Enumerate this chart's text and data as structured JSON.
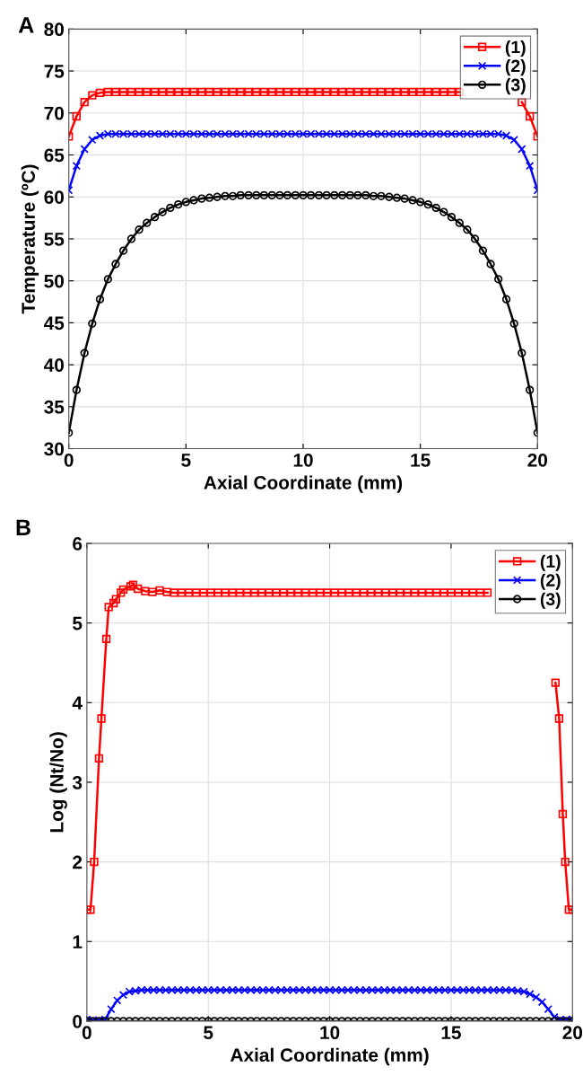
{
  "chart_data": [
    {
      "type": "line",
      "annotations": [
        "A"
      ],
      "xlabel": "Axial Coordinate (mm)",
      "ylabel": "Temperature (ºC)",
      "x": [
        0,
        0.33,
        0.67,
        1,
        1.33,
        1.67,
        2,
        2.33,
        2.67,
        3,
        3.33,
        3.67,
        4,
        4.33,
        4.67,
        5,
        5.33,
        5.67,
        6,
        6.33,
        6.67,
        7,
        7.33,
        7.67,
        8,
        8.33,
        8.67,
        9,
        9.33,
        9.67,
        10,
        10.33,
        10.67,
        11,
        11.33,
        11.67,
        12,
        12.33,
        12.67,
        13,
        13.33,
        13.67,
        14,
        14.33,
        14.67,
        15,
        15.33,
        15.67,
        16,
        16.33,
        16.67,
        17,
        17.33,
        17.67,
        18,
        18.33,
        18.67,
        19,
        19.33,
        19.67,
        20
      ],
      "xlim": [
        0,
        20
      ],
      "xticks": [
        0,
        5,
        10,
        15,
        20
      ],
      "ylim": [
        30,
        80
      ],
      "yticks": [
        30,
        35,
        40,
        45,
        50,
        55,
        60,
        65,
        70,
        75,
        80
      ],
      "grid": true,
      "legend": "top right",
      "line_style": "solid",
      "series": [
        {
          "name": "(1)",
          "color": "#ff0000",
          "marker": "square",
          "values": [
            67.2,
            69.6,
            71.3,
            72.1,
            72.4,
            72.5,
            72.5,
            72.5,
            72.5,
            72.5,
            72.5,
            72.5,
            72.5,
            72.5,
            72.5,
            72.5,
            72.5,
            72.5,
            72.5,
            72.5,
            72.5,
            72.5,
            72.5,
            72.5,
            72.5,
            72.5,
            72.5,
            72.5,
            72.5,
            72.5,
            72.5,
            72.5,
            72.5,
            72.5,
            72.5,
            72.5,
            72.5,
            72.5,
            72.5,
            72.5,
            72.5,
            72.5,
            72.5,
            72.5,
            72.5,
            72.5,
            72.5,
            72.5,
            72.5,
            72.5,
            72.5,
            null,
            null,
            null,
            null,
            null,
            null,
            null,
            71.3,
            69.6,
            67.2
          ]
        },
        {
          "name": "(2)",
          "color": "#0000ff",
          "marker": "cross",
          "values": [
            60.8,
            63.7,
            65.7,
            66.8,
            67.3,
            67.5,
            67.5,
            67.5,
            67.5,
            67.5,
            67.5,
            67.5,
            67.5,
            67.5,
            67.5,
            67.5,
            67.5,
            67.5,
            67.5,
            67.5,
            67.5,
            67.5,
            67.5,
            67.5,
            67.5,
            67.5,
            67.5,
            67.5,
            67.5,
            67.5,
            67.5,
            67.5,
            67.5,
            67.5,
            67.5,
            67.5,
            67.5,
            67.5,
            67.5,
            67.5,
            67.5,
            67.5,
            67.5,
            67.5,
            67.5,
            67.5,
            67.5,
            67.5,
            67.5,
            67.5,
            67.5,
            67.5,
            67.5,
            67.5,
            67.5,
            67.5,
            67.3,
            66.8,
            65.7,
            63.7,
            60.8
          ]
        },
        {
          "name": "(3)",
          "color": "#000000",
          "marker": "circle",
          "values": [
            31.9,
            37.0,
            41.4,
            44.9,
            47.8,
            50.2,
            52.0,
            53.6,
            55.0,
            56.1,
            56.9,
            57.6,
            58.2,
            58.7,
            59.1,
            59.4,
            59.6,
            59.8,
            59.9,
            60.0,
            60.1,
            60.1,
            60.2,
            60.2,
            60.2,
            60.2,
            60.2,
            60.2,
            60.2,
            60.2,
            60.2,
            60.2,
            60.2,
            60.2,
            60.2,
            60.2,
            60.2,
            60.2,
            60.2,
            60.1,
            60.1,
            60.0,
            59.9,
            59.8,
            59.6,
            59.4,
            59.1,
            58.7,
            58.2,
            57.6,
            56.9,
            56.1,
            55.0,
            53.6,
            52.0,
            50.2,
            47.8,
            44.9,
            41.4,
            37.0,
            31.9
          ]
        }
      ]
    },
    {
      "type": "line",
      "annotations": [
        "B"
      ],
      "xlabel": "Axial Coordinate (mm)",
      "ylabel": "Log (Nt/No)",
      "x": [
        0,
        0.25,
        0.5,
        0.75,
        1,
        1.25,
        1.5,
        1.75,
        2,
        2.25,
        2.5,
        2.75,
        3,
        3.25,
        3.5,
        3.75,
        4,
        4.25,
        4.5,
        4.75,
        5,
        5.25,
        5.5,
        5.75,
        6,
        6.25,
        6.5,
        6.75,
        7,
        7.25,
        7.5,
        7.75,
        8,
        8.25,
        8.5,
        8.75,
        9,
        9.25,
        9.5,
        9.75,
        10,
        10.25,
        10.5,
        10.75,
        11,
        11.25,
        11.5,
        11.75,
        12,
        12.25,
        12.5,
        12.75,
        13,
        13.25,
        13.5,
        13.75,
        14,
        14.25,
        14.5,
        14.75,
        15,
        15.25,
        15.5,
        15.75,
        16,
        16.25,
        16.5,
        16.75,
        17,
        17.25,
        17.5,
        17.75,
        18,
        18.25,
        18.5,
        18.75,
        19,
        19.25,
        19.5,
        19.75,
        20
      ],
      "xlim": [
        0,
        20
      ],
      "xticks": [
        0,
        5,
        10,
        15,
        20
      ],
      "ylim": [
        0,
        6
      ],
      "yticks": [
        0,
        1,
        2,
        3,
        4,
        5,
        6
      ],
      "grid": true,
      "legend": "top right",
      "line_style": "solid",
      "series": [
        {
          "name": "(1)",
          "color": "#ff0000",
          "marker": "square",
          "x": [
            0,
            0.15,
            0.3,
            0.5,
            0.6,
            0.8,
            0.9,
            1.1,
            1.2,
            1.4,
            1.5,
            1.8,
            1.9,
            2.1,
            2.4,
            2.7,
            3.0,
            3.3,
            3.6,
            3.9,
            4.2,
            4.5,
            4.8,
            5.1,
            5.4,
            5.7,
            6.0,
            6.3,
            6.6,
            6.9,
            7.2,
            7.5,
            7.8,
            8.1,
            8.4,
            8.7,
            9.0,
            9.3,
            9.6,
            9.9,
            10.2,
            10.5,
            10.8,
            11.1,
            11.4,
            11.7,
            12.0,
            12.3,
            12.6,
            12.9,
            13.2,
            13.5,
            13.8,
            14.1,
            14.4,
            14.7,
            15.0,
            15.3,
            15.6,
            15.9,
            16.2,
            16.5,
            16.8,
            17.0,
            18.0,
            19.3,
            19.45,
            19.6,
            19.7,
            19.85,
            20
          ],
          "values": [
            1.4,
            1.4,
            2.0,
            3.3,
            3.8,
            4.8,
            5.2,
            5.25,
            5.3,
            5.38,
            5.42,
            5.46,
            5.48,
            5.43,
            5.4,
            5.39,
            5.41,
            5.39,
            5.38,
            5.38,
            5.38,
            5.38,
            5.38,
            5.38,
            5.38,
            5.38,
            5.38,
            5.38,
            5.38,
            5.38,
            5.38,
            5.38,
            5.38,
            5.38,
            5.38,
            5.38,
            5.38,
            5.38,
            5.38,
            5.38,
            5.38,
            5.38,
            5.38,
            5.38,
            5.38,
            5.38,
            5.38,
            5.38,
            5.38,
            5.38,
            5.38,
            5.38,
            5.38,
            5.38,
            5.38,
            5.38,
            5.38,
            5.38,
            5.38,
            5.38,
            5.38,
            5.38,
            null,
            null,
            null,
            4.25,
            3.8,
            2.6,
            2.0,
            1.4,
            1.4
          ]
        },
        {
          "name": "(2)",
          "color": "#0000ff",
          "marker": "cross",
          "values": [
            0.02,
            0.01,
            0.01,
            0.02,
            0.15,
            0.26,
            0.33,
            0.37,
            0.38,
            0.39,
            0.39,
            0.39,
            0.39,
            0.39,
            0.39,
            0.39,
            0.39,
            0.39,
            0.39,
            0.39,
            0.39,
            0.39,
            0.39,
            0.39,
            0.39,
            0.39,
            0.39,
            0.39,
            0.39,
            0.39,
            0.39,
            0.39,
            0.39,
            0.39,
            0.39,
            0.39,
            0.39,
            0.39,
            0.39,
            0.39,
            0.39,
            0.39,
            0.39,
            0.39,
            0.39,
            0.39,
            0.39,
            0.39,
            0.39,
            0.39,
            0.39,
            0.39,
            0.39,
            0.39,
            0.39,
            0.39,
            0.39,
            0.39,
            0.39,
            0.39,
            0.39,
            0.39,
            0.39,
            0.39,
            0.39,
            0.39,
            0.39,
            0.39,
            0.39,
            0.39,
            0.39,
            0.38,
            0.37,
            0.34,
            0.3,
            0.24,
            0.15,
            0.05,
            0.02,
            0.02,
            0.02
          ]
        },
        {
          "name": "(3)",
          "color": "#000000",
          "marker": "circle",
          "values": [
            0,
            0,
            0,
            0,
            0,
            0,
            0,
            0,
            0,
            0,
            0,
            0,
            0,
            0,
            0,
            0,
            0,
            0,
            0,
            0,
            0,
            0,
            0,
            0,
            0,
            0,
            0,
            0,
            0,
            0,
            0,
            0,
            0,
            0,
            0,
            0,
            0,
            0,
            0,
            0,
            0,
            0,
            0,
            0,
            0,
            0,
            0,
            0,
            0,
            0,
            0,
            0,
            0,
            0,
            0,
            0,
            0,
            0,
            0,
            0,
            0,
            0,
            0,
            0,
            0,
            0,
            0,
            0,
            0,
            0,
            0,
            0,
            0,
            0,
            0,
            0,
            0,
            0,
            0,
            0,
            0
          ]
        }
      ]
    }
  ]
}
